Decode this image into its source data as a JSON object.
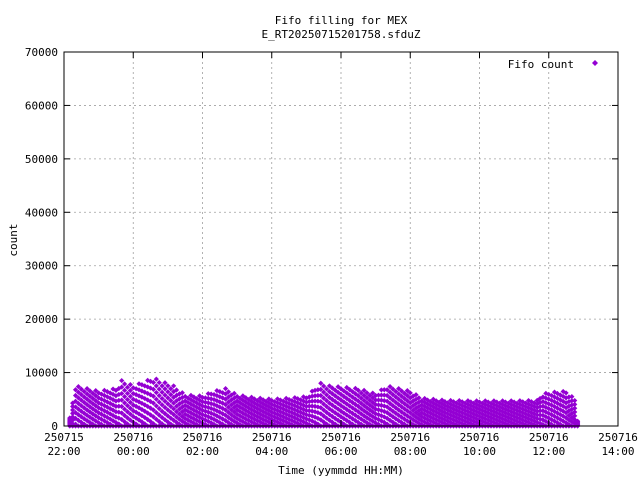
{
  "chart_data": {
    "type": "scatter",
    "title": "Fifo filling for MEX",
    "subtitle": "E_RT20250715201758.sfduZ",
    "xlabel": "Time (yymmdd HH:MM)",
    "ylabel": "count",
    "xlim": [
      "2025-07-15T22:00",
      "2025-07-16T14:00"
    ],
    "ylim": [
      0,
      70000
    ],
    "grid": true,
    "legend_position": "top-right",
    "x_ticks": [
      {
        "date": "250715",
        "time": "22:00",
        "iso": "2025-07-15T22:00"
      },
      {
        "date": "250716",
        "time": "00:00",
        "iso": "2025-07-16T00:00"
      },
      {
        "date": "250716",
        "time": "02:00",
        "iso": "2025-07-16T02:00"
      },
      {
        "date": "250716",
        "time": "04:00",
        "iso": "2025-07-16T04:00"
      },
      {
        "date": "250716",
        "time": "06:00",
        "iso": "2025-07-16T06:00"
      },
      {
        "date": "250716",
        "time": "08:00",
        "iso": "2025-07-16T08:00"
      },
      {
        "date": "250716",
        "time": "10:00",
        "iso": "2025-07-16T10:00"
      },
      {
        "date": "250716",
        "time": "12:00",
        "iso": "2025-07-16T12:00"
      },
      {
        "date": "250716",
        "time": "14:00",
        "iso": "2025-07-16T14:00"
      }
    ],
    "y_ticks": [
      "0",
      "10000",
      "20000",
      "30000",
      "40000",
      "50000",
      "60000",
      "70000"
    ],
    "series": [
      {
        "name": "Fifo count",
        "color": "#9400d3",
        "marker": "diamond",
        "envelope_note": "points sampled every ~5 min between 0 and the upper envelope value",
        "x_range": [
          "2025-07-15T22:10",
          "2025-07-16T12:50"
        ],
        "envelope": [
          {
            "t": "2025-07-15T22:10",
            "y": 1500
          },
          {
            "t": "2025-07-15T22:20",
            "y": 7500
          },
          {
            "t": "2025-07-15T23:00",
            "y": 6500
          },
          {
            "t": "2025-07-15T23:30",
            "y": 7000
          },
          {
            "t": "2025-07-15T23:40",
            "y": 8500
          },
          {
            "t": "2025-07-16T00:00",
            "y": 7500
          },
          {
            "t": "2025-07-16T00:20",
            "y": 8300
          },
          {
            "t": "2025-07-16T00:35",
            "y": 9000
          },
          {
            "t": "2025-07-16T00:50",
            "y": 8300
          },
          {
            "t": "2025-07-16T01:10",
            "y": 7500
          },
          {
            "t": "2025-07-16T01:30",
            "y": 5800
          },
          {
            "t": "2025-07-16T02:00",
            "y": 5600
          },
          {
            "t": "2025-07-16T02:20",
            "y": 6500
          },
          {
            "t": "2025-07-16T02:40",
            "y": 7000
          },
          {
            "t": "2025-07-16T03:00",
            "y": 5800
          },
          {
            "t": "2025-07-16T03:30",
            "y": 5300
          },
          {
            "t": "2025-07-16T04:00",
            "y": 5000
          },
          {
            "t": "2025-07-16T04:30",
            "y": 5200
          },
          {
            "t": "2025-07-16T05:00",
            "y": 5500
          },
          {
            "t": "2025-07-16T05:25",
            "y": 8000
          },
          {
            "t": "2025-07-16T05:40",
            "y": 7500
          },
          {
            "t": "2025-07-16T06:00",
            "y": 7300
          },
          {
            "t": "2025-07-16T06:30",
            "y": 7000
          },
          {
            "t": "2025-07-16T07:00",
            "y": 6000
          },
          {
            "t": "2025-07-16T07:20",
            "y": 7500
          },
          {
            "t": "2025-07-16T07:40",
            "y": 7000
          },
          {
            "t": "2025-07-16T08:00",
            "y": 6500
          },
          {
            "t": "2025-07-16T08:20",
            "y": 5200
          },
          {
            "t": "2025-07-16T09:00",
            "y": 4800
          },
          {
            "t": "2025-07-16T10:00",
            "y": 4700
          },
          {
            "t": "2025-07-16T11:00",
            "y": 4700
          },
          {
            "t": "2025-07-16T11:40",
            "y": 4800
          },
          {
            "t": "2025-07-16T11:50",
            "y": 6000
          },
          {
            "t": "2025-07-16T12:05",
            "y": 6300
          },
          {
            "t": "2025-07-16T12:30",
            "y": 6500
          },
          {
            "t": "2025-07-16T12:45",
            "y": 5000
          },
          {
            "t": "2025-07-16T12:50",
            "y": 1000
          }
        ]
      }
    ]
  }
}
